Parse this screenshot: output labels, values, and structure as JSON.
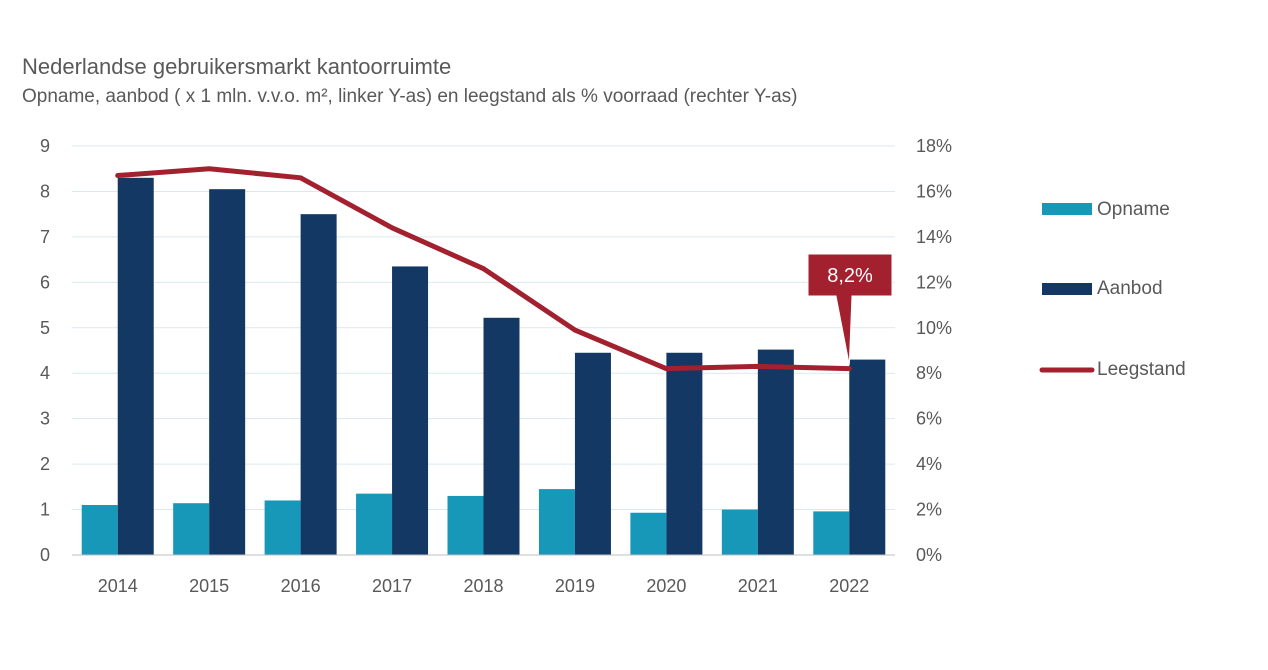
{
  "title": "Nederlandse gebruikersmarkt kantoorruimte",
  "subtitle": "Opname, aanbod ( x 1 mln. v.v.o. m², linker Y-as) en leegstand als % voorraad (rechter Y-as)",
  "colors": {
    "opname": "#1798b8",
    "aanbod": "#133863",
    "leegstand": "#a3202f",
    "grid": "#d9e9ef",
    "axis": "#595959"
  },
  "chart_data": {
    "type": "bar",
    "title": "Nederlandse gebruikersmarkt kantoorruimte",
    "subtitle": "Opname, aanbod ( x 1 mln. v.v.o. m², linker Y-as) en leegstand als % voorraad (rechter Y-as)",
    "categories": [
      "2014",
      "2015",
      "2016",
      "2017",
      "2018",
      "2019",
      "2020",
      "2021",
      "2022"
    ],
    "series": [
      {
        "name": "Opname",
        "type": "bar",
        "axis": "left",
        "values": [
          1.1,
          1.14,
          1.2,
          1.35,
          1.3,
          1.45,
          0.93,
          1.0,
          0.96
        ]
      },
      {
        "name": "Aanbod",
        "type": "bar",
        "axis": "left",
        "values": [
          8.3,
          8.05,
          7.5,
          6.35,
          5.22,
          4.45,
          4.45,
          4.52,
          4.3
        ]
      },
      {
        "name": "Leegstand",
        "type": "line",
        "axis": "right",
        "values": [
          16.7,
          17.0,
          16.6,
          14.4,
          12.6,
          9.9,
          8.2,
          8.3,
          8.2
        ]
      }
    ],
    "y_left": {
      "range": [
        0,
        9
      ],
      "ticks": [
        "0",
        "1",
        "2",
        "3",
        "4",
        "5",
        "6",
        "7",
        "8",
        "9"
      ]
    },
    "y_right": {
      "range": [
        0,
        18
      ],
      "ticks": [
        "0%",
        "2%",
        "4%",
        "6%",
        "8%",
        "10%",
        "12%",
        "14%",
        "16%",
        "18%"
      ]
    },
    "grid": true,
    "legend_position": "right",
    "annotation": {
      "text": "8,2%",
      "category": "2022",
      "series": "Leegstand"
    }
  }
}
